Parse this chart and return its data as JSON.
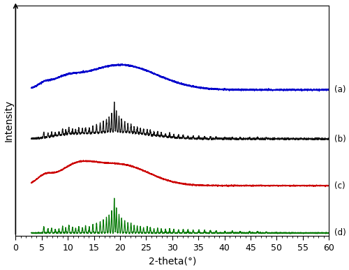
{
  "xlabel": "2-theta(°)",
  "xlim": [
    0,
    60
  ],
  "xticks": [
    0,
    5,
    10,
    15,
    20,
    25,
    30,
    35,
    40,
    45,
    50,
    55,
    60
  ],
  "colors": {
    "a": "#0000cc",
    "b": "#111111",
    "c": "#cc0000",
    "d": "#007700"
  },
  "labels": {
    "a": "(a)",
    "b": "(b)",
    "c": "(c)",
    "d": "(d)"
  },
  "offsets": {
    "a": 2.8,
    "b": 1.85,
    "c": 0.9,
    "d": 0.0
  },
  "scale": {
    "a": 0.55,
    "b": 0.75,
    "c": 0.55,
    "d": 0.7
  },
  "background_color": "#ffffff",
  "ylim": [
    -0.05,
    4.5
  ],
  "noise_seed": 42
}
